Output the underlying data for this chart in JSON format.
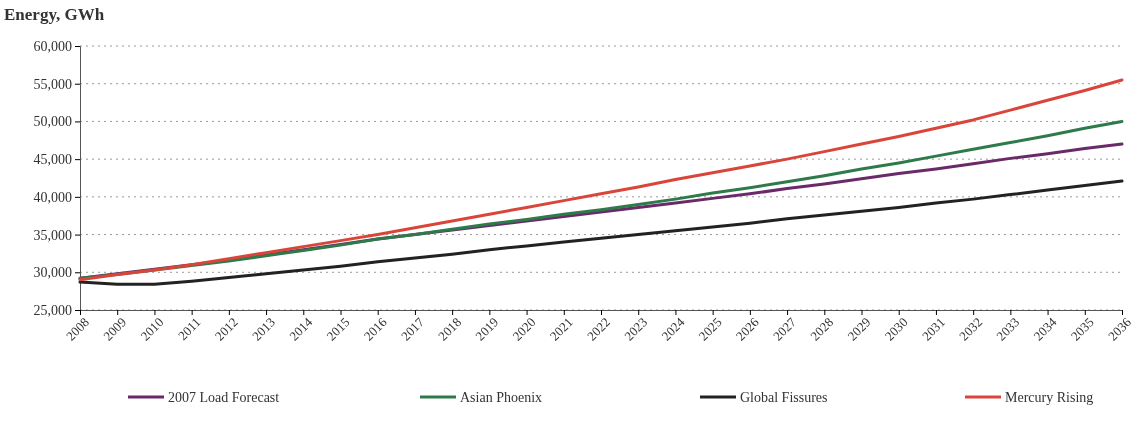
{
  "chart_data": {
    "type": "line",
    "ylabel": "Energy, GWh",
    "categories": [
      "2008",
      "2009",
      "2010",
      "2011",
      "2012",
      "2013",
      "2014",
      "2015",
      "2016",
      "2017",
      "2018",
      "2019",
      "2020",
      "2021",
      "2022",
      "2023",
      "2024",
      "2025",
      "2026",
      "2027",
      "2028",
      "2029",
      "2030",
      "2031",
      "2032",
      "2033",
      "2034",
      "2035",
      "2036"
    ],
    "series": [
      {
        "name": "2007 Load Forecast",
        "color": "#6a2a6a",
        "values": [
          29200,
          29800,
          30400,
          31000,
          31600,
          32300,
          33000,
          33700,
          34400,
          35000,
          35600,
          36200,
          36800,
          37400,
          38000,
          38600,
          39200,
          39800,
          40400,
          41100,
          41700,
          42400,
          43100,
          43700,
          44400,
          45100,
          45700,
          46400,
          47000
        ]
      },
      {
        "name": "Asian Phoenix",
        "color": "#2e7a4a",
        "values": [
          29200,
          29700,
          30300,
          30900,
          31500,
          32200,
          32900,
          33600,
          34400,
          35000,
          35700,
          36400,
          37000,
          37700,
          38300,
          39000,
          39700,
          40500,
          41200,
          42000,
          42800,
          43700,
          44500,
          45400,
          46300,
          47200,
          48100,
          49100,
          50000
        ]
      },
      {
        "name": "Global Fissures",
        "color": "#222222",
        "values": [
          28700,
          28400,
          28400,
          28800,
          29300,
          29800,
          30300,
          30800,
          31400,
          31900,
          32400,
          33000,
          33500,
          34000,
          34500,
          35000,
          35500,
          36000,
          36500,
          37100,
          37600,
          38100,
          38600,
          39200,
          39700,
          40300,
          40900,
          41500,
          42100
        ]
      },
      {
        "name": "Mercury Rising",
        "color": "#d9453a",
        "values": [
          29000,
          29700,
          30300,
          31000,
          31800,
          32600,
          33400,
          34200,
          35000,
          35900,
          36800,
          37700,
          38600,
          39500,
          40400,
          41300,
          42300,
          43200,
          44100,
          45000,
          46000,
          47000,
          48000,
          49100,
          50200,
          51500,
          52800,
          54100,
          55500
        ]
      }
    ],
    "ylim": [
      25000,
      60000
    ],
    "yticks": [
      {
        "value": 25000,
        "label": "25,000"
      },
      {
        "value": 30000,
        "label": "30,000"
      },
      {
        "value": 35000,
        "label": "35,000"
      },
      {
        "value": 40000,
        "label": "40,000"
      },
      {
        "value": 45000,
        "label": "45,000"
      },
      {
        "value": 50000,
        "label": "50,000"
      },
      {
        "value": 55000,
        "label": "55,000"
      },
      {
        "value": 60000,
        "label": "60,000"
      }
    ],
    "grid": "y",
    "legend": "bottom",
    "line_style": "solid",
    "marker": "none"
  }
}
